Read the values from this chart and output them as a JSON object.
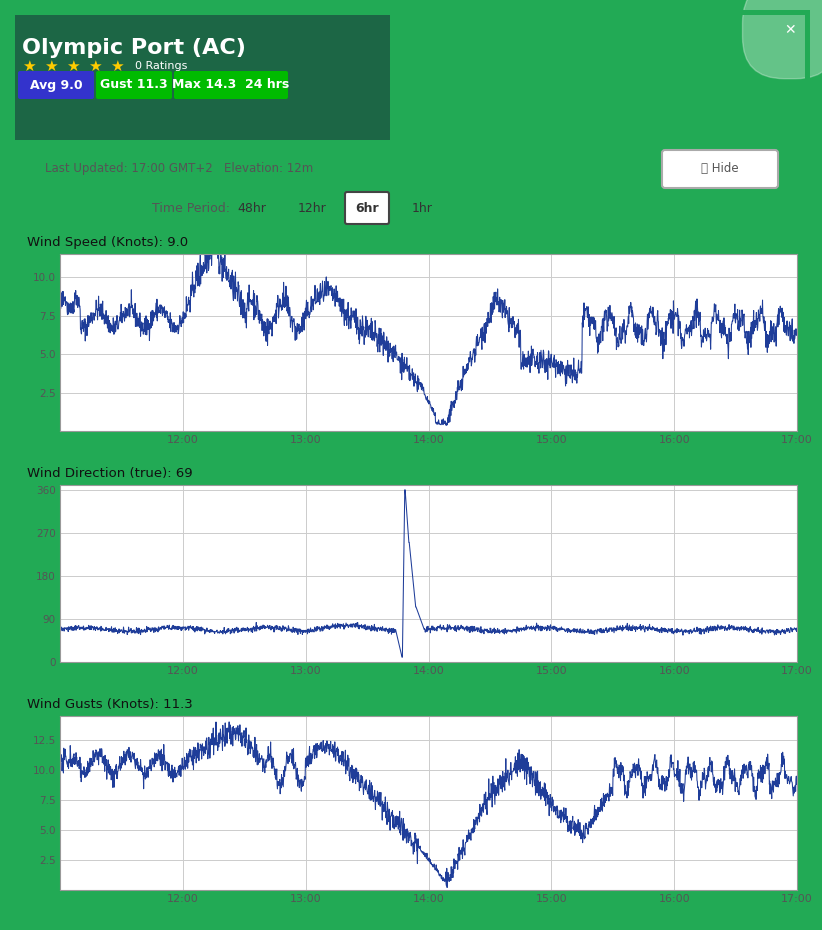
{
  "title_text": "Olympic Port (AC)",
  "n_stars": 5,
  "ratings_text": "0 Ratings",
  "avg_label": "Avg 9.0",
  "gust_label": "Gust 11.3",
  "max_label": "Max 14.3  24 hrs",
  "last_updated": "Last Updated: 17:00 GMT+2   Elevation: 12m",
  "time_period_options": [
    "48hr",
    "12hr",
    "6hr",
    "1hr"
  ],
  "active_period": "6hr",
  "wind_speed_title": "Wind Speed (Knots): 9.0",
  "wind_dir_title": "Wind Direction (true): 69",
  "wind_gust_title": "Wind Gusts (Knots): 11.3",
  "x_labels": [
    "12:00",
    "13:00",
    "14:00",
    "15:00",
    "16:00",
    "17:00"
  ],
  "speed_yticks": [
    2.5,
    5.0,
    7.5,
    10.0
  ],
  "dir_yticks": [
    0,
    90,
    180,
    270,
    360
  ],
  "gust_yticks": [
    2.5,
    5.0,
    7.5,
    10.0,
    12.5
  ],
  "line_color": "#1f3d99",
  "grid_color": "#cccccc",
  "chart_bg": "#ffffff",
  "outer_bg": "#22aa55",
  "map_bg_left": "#1a5a4a",
  "map_bg_right": "#2a7a8a",
  "avg_btn_color": "#3333cc",
  "gust_btn_color": "#00bb00",
  "max_btn_color": "#00bb00",
  "star_color": "#ffcc00",
  "info_bg": "#ffffff",
  "chart_border": "#999999",
  "tick_label_color": "#555555",
  "chart_title_color": "#111111",
  "white_panel_bg": "#f8f8f8"
}
